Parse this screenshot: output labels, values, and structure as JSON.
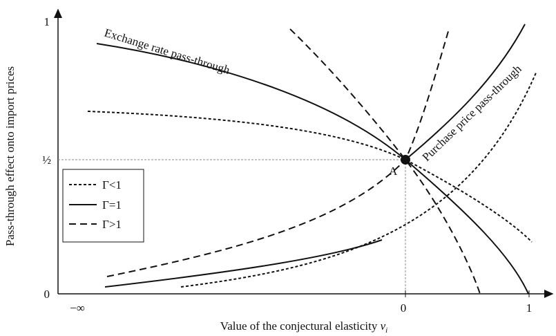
{
  "axes": {
    "y_title": "Pass-through effect onto import prices",
    "x_title": {
      "text": "Value of the conjectural elasticity",
      "symbol": "ν",
      "subscript": "i"
    },
    "y_ticks": [
      "1",
      "½",
      "0"
    ],
    "x_ticks": [
      "−∞",
      "0",
      "1"
    ]
  },
  "point_label": "A",
  "curve_labels": [
    "Exchange rate pass-through",
    "Purchase price pass-through"
  ],
  "legend": [
    "Γ<1",
    "Γ=1",
    "Γ>1"
  ]
}
